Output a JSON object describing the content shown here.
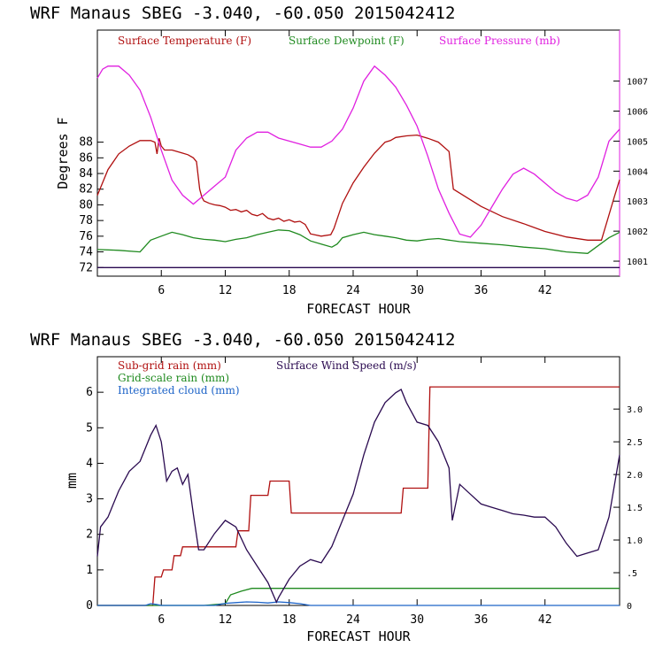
{
  "chart_data": [
    {
      "type": "line",
      "title": "WRF   Manaus SBEG   -3.040, -60.050  2015042412",
      "xlabel": "FORECAST HOUR",
      "ylabel": "Degrees F",
      "xlim": [
        0,
        49
      ],
      "ylim": [
        70.9,
        102.3
      ],
      "y2lim": [
        1000.5,
        1008.7
      ],
      "x_ticks": [
        6,
        12,
        18,
        24,
        30,
        36,
        42
      ],
      "y_ticks": [
        72,
        74,
        76,
        78,
        80,
        82,
        84,
        86,
        88
      ],
      "y2_ticks": [
        1001,
        1002,
        1003,
        1004,
        1005,
        1006,
        1007
      ],
      "grid": false,
      "legend": "top-left",
      "series": [
        {
          "name": "Surface Temperature (F)",
          "color": "#b01010",
          "axis": "left",
          "x": [
            0,
            1,
            2,
            3,
            4,
            5,
            5.4,
            5.6,
            5.8,
            6,
            6.3,
            7,
            7.5,
            8,
            8.5,
            9,
            9.3,
            9.6,
            9.8,
            10,
            10.5,
            11,
            11.5,
            12,
            12.5,
            13,
            13.5,
            14,
            14.5,
            15,
            15.5,
            16,
            16.5,
            17,
            17.5,
            18,
            18.5,
            19,
            19.5,
            20,
            21,
            21.9,
            22.2,
            23,
            24,
            25,
            26,
            27,
            27.5,
            28,
            29,
            30,
            31,
            32,
            33,
            33.4,
            34,
            36,
            38,
            40,
            42,
            44,
            46,
            47.3,
            47.8,
            48.5,
            49
          ],
          "y": [
            81.2,
            84.5,
            86.5,
            87.5,
            88.2,
            88.2,
            88.0,
            86.5,
            88.5,
            87.5,
            87.0,
            87.0,
            86.8,
            86.6,
            86.4,
            86.0,
            85.5,
            82.0,
            81.0,
            80.5,
            80.2,
            80.0,
            79.9,
            79.7,
            79.3,
            79.4,
            79.1,
            79.3,
            78.8,
            78.6,
            78.9,
            78.3,
            78.1,
            78.3,
            77.9,
            78.1,
            77.8,
            77.9,
            77.5,
            76.3,
            76.0,
            76.2,
            77.0,
            80.2,
            82.8,
            84.8,
            86.6,
            88.0,
            88.2,
            88.6,
            88.8,
            88.9,
            88.5,
            88.0,
            86.8,
            82.0,
            81.5,
            79.8,
            78.5,
            77.6,
            76.6,
            75.9,
            75.5,
            75.5,
            77.8,
            81.0,
            83.2
          ]
        },
        {
          "name": "Surface Dewpoint (F)",
          "color": "#1f8a1f",
          "axis": "left",
          "x": [
            0,
            2,
            4,
            5,
            6,
            7,
            8,
            9,
            10,
            11,
            12,
            13,
            14,
            15,
            16,
            17,
            18,
            19,
            20,
            21,
            22,
            22.5,
            23,
            24,
            25,
            26,
            27,
            28,
            29,
            30,
            31,
            32,
            33,
            34,
            36,
            38,
            40,
            42,
            44,
            46,
            47.3,
            48,
            49
          ],
          "y": [
            74.3,
            74.2,
            74.0,
            75.5,
            76.0,
            76.5,
            76.2,
            75.8,
            75.6,
            75.5,
            75.3,
            75.6,
            75.8,
            76.2,
            76.5,
            76.8,
            76.7,
            76.2,
            75.4,
            75.0,
            74.6,
            75.0,
            75.8,
            76.2,
            76.5,
            76.2,
            76.0,
            75.8,
            75.5,
            75.4,
            75.6,
            75.7,
            75.5,
            75.3,
            75.1,
            74.9,
            74.6,
            74.4,
            74.0,
            73.8,
            75.1,
            75.8,
            76.5
          ]
        },
        {
          "name": "Surface Pressure (mb)",
          "color": "#e020e0",
          "axis": "right",
          "x": [
            0,
            0.5,
            1,
            2,
            3,
            4,
            5,
            6,
            7,
            8,
            9,
            10,
            11,
            12,
            13,
            14,
            15,
            16,
            17,
            18,
            19,
            20,
            21,
            22,
            23,
            24,
            25,
            26,
            27,
            28,
            29,
            30,
            31,
            32,
            33,
            34,
            35,
            36,
            37,
            38,
            39,
            40,
            41,
            42,
            43,
            44,
            45,
            46,
            47,
            48,
            49
          ],
          "y": [
            1007.1,
            1007.4,
            1007.5,
            1007.5,
            1007.2,
            1006.7,
            1005.8,
            1004.7,
            1003.7,
            1003.2,
            1002.9,
            1003.2,
            1003.5,
            1003.8,
            1004.7,
            1005.1,
            1005.3,
            1005.3,
            1005.1,
            1005.0,
            1004.9,
            1004.8,
            1004.8,
            1005.0,
            1005.4,
            1006.1,
            1007.0,
            1007.5,
            1007.2,
            1006.8,
            1006.2,
            1005.5,
            1004.5,
            1003.4,
            1002.6,
            1001.9,
            1001.8,
            1002.2,
            1002.8,
            1003.4,
            1003.9,
            1004.1,
            1003.9,
            1003.6,
            1003.3,
            1003.1,
            1003.0,
            1003.2,
            1003.8,
            1005.0,
            1005.4
          ]
        },
        {
          "name": "",
          "color": "#2a0a50",
          "axis": "left",
          "x": [
            0,
            2,
            4,
            6,
            8,
            10,
            12,
            14,
            16,
            18,
            20,
            22,
            24,
            26,
            28,
            30,
            32,
            34,
            36,
            38,
            40,
            42,
            44,
            46,
            48,
            49
          ],
          "y": [
            72.0,
            72.0,
            72.0,
            72.0,
            72.0,
            72.0,
            72.0,
            72.0,
            72.0,
            72.0,
            72.0,
            72.0,
            72.0,
            72.0,
            72.0,
            72.0,
            72.0,
            72.0,
            72.0,
            72.0,
            72.0,
            72.0,
            72.0,
            72.0,
            72.0,
            72.0
          ]
        }
      ]
    },
    {
      "type": "line",
      "title": "WRF   Manaus SBEG   -3.040, -60.050  2015042412",
      "xlabel": "FORECAST HOUR",
      "ylabel": "mm",
      "xlim": [
        0,
        49
      ],
      "ylim": [
        0,
        7.0
      ],
      "y2lim": [
        0,
        3.8
      ],
      "x_ticks": [
        6,
        12,
        18,
        24,
        30,
        36,
        42
      ],
      "y_ticks": [
        0,
        1,
        2,
        3,
        4,
        5,
        6
      ],
      "y2_ticks": [
        0,
        0.5,
        1.0,
        1.5,
        2.0,
        2.5,
        3.0
      ],
      "y2_tick_labels": [
        "0",
        ".5",
        "1.0",
        "1.5",
        "2.0",
        "2.5",
        "3.0"
      ],
      "grid": false,
      "legend": "top-left",
      "series": [
        {
          "name": "Sub-grid rain (mm)",
          "color": "#b01010",
          "axis": "left",
          "x": [
            0,
            5.2,
            5.4,
            6.0,
            6.2,
            7.0,
            7.2,
            7.8,
            8.0,
            13.0,
            13.2,
            14.2,
            14.4,
            16.0,
            16.2,
            18.0,
            18.2,
            28.5,
            28.7,
            31.0,
            31.2,
            49
          ],
          "y": [
            0,
            0,
            0.8,
            0.8,
            1.0,
            1.0,
            1.4,
            1.4,
            1.65,
            1.65,
            2.1,
            2.1,
            3.1,
            3.1,
            3.5,
            3.5,
            2.6,
            2.6,
            3.3,
            3.3,
            6.15,
            6.15
          ]
        },
        {
          "name": "Grid-scale rain (mm)",
          "color": "#1f8a1f",
          "axis": "left",
          "x": [
            0,
            10,
            12,
            12.5,
            13.5,
            14.5,
            16,
            49
          ],
          "y": [
            0,
            0,
            0.05,
            0.3,
            0.4,
            0.48,
            0.48,
            0.48
          ]
        },
        {
          "name": "Integrated cloud (mm)",
          "color": "#1e64c8",
          "axis": "left",
          "x": [
            0,
            4.5,
            5,
            5.5,
            6,
            11,
            12,
            13,
            14,
            15,
            16,
            17,
            18,
            19,
            20,
            49
          ],
          "y": [
            0,
            0,
            0.05,
            0.03,
            0,
            0,
            0.06,
            0.08,
            0.1,
            0.09,
            0.07,
            0.1,
            0.08,
            0.05,
            0,
            0
          ]
        },
        {
          "name": "Surface Wind Speed (m/s)",
          "color": "#2a0a50",
          "axis": "right",
          "x": [
            0,
            0.3,
            1,
            2,
            3,
            4,
            5,
            5.5,
            6,
            6.5,
            7,
            7.5,
            8,
            8.5,
            9,
            9.5,
            10,
            11,
            12,
            13,
            14,
            15,
            16,
            16.8,
            17,
            18,
            19,
            20,
            21,
            22,
            23,
            24,
            25,
            26,
            27,
            28,
            28.5,
            29,
            30,
            31,
            32,
            33,
            33.3,
            34,
            35,
            36,
            37,
            38,
            39,
            40,
            41,
            42,
            43,
            44,
            45,
            46,
            47,
            48,
            49
          ],
          "y": [
            0.75,
            1.2,
            1.35,
            1.75,
            2.05,
            2.2,
            2.6,
            2.75,
            2.5,
            1.9,
            2.05,
            2.1,
            1.85,
            2.0,
            1.4,
            0.85,
            0.85,
            1.1,
            1.3,
            1.2,
            0.85,
            0.6,
            0.35,
            0.05,
            0.12,
            0.4,
            0.6,
            0.7,
            0.65,
            0.9,
            1.3,
            1.7,
            2.3,
            2.8,
            3.1,
            3.25,
            3.3,
            3.1,
            2.8,
            2.75,
            2.5,
            2.1,
            1.3,
            1.85,
            1.7,
            1.55,
            1.5,
            1.45,
            1.4,
            1.38,
            1.35,
            1.35,
            1.2,
            0.95,
            0.75,
            0.8,
            0.85,
            1.35,
            2.3
          ]
        }
      ]
    }
  ]
}
